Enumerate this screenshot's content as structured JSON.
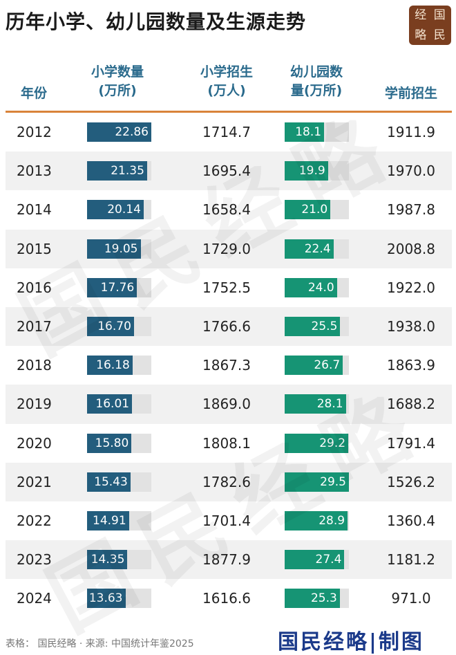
{
  "title": "历年小学、幼儿园数量及生源走势",
  "logo": {
    "chars": [
      "经",
      "国",
      "略",
      "民"
    ]
  },
  "watermark": "国民经略",
  "colors": {
    "primary_bar": "#235d7d",
    "kindergarten_bar": "#169474",
    "header_text": "#2a6a8c",
    "accent_line": "#d9833a",
    "logo_bg": "#7a3e1f"
  },
  "header": {
    "year": "年份",
    "schools_line1": "小学数量",
    "schools_line2": "(万所)",
    "enroll_line1": "小学招生",
    "enroll_line2": "(万人)",
    "kinder_line1": "幼儿园数",
    "kinder_line2": "量(万所)",
    "preschool": "学前招生"
  },
  "footer": {
    "source": "表格： 国民经略 · 来源: 中国统计年鉴2025",
    "brand": "国民经略|制图"
  },
  "chart_data": {
    "type": "table",
    "columns": [
      "年份",
      "小学数量(万所)",
      "小学招生(万人)",
      "幼儿园数量(万所)",
      "学前招生"
    ],
    "primary_school_bar_max": 22.86,
    "kindergarten_bar_max": 29.5,
    "rows": [
      {
        "year": "2012",
        "primary_schools": "22.86",
        "primary_enroll": "1714.7",
        "kindergartens": "18.1",
        "preschool_enroll": "1911.9"
      },
      {
        "year": "2013",
        "primary_schools": "21.35",
        "primary_enroll": "1695.4",
        "kindergartens": "19.9",
        "preschool_enroll": "1970.0"
      },
      {
        "year": "2014",
        "primary_schools": "20.14",
        "primary_enroll": "1658.4",
        "kindergartens": "21.0",
        "preschool_enroll": "1987.8"
      },
      {
        "year": "2015",
        "primary_schools": "19.05",
        "primary_enroll": "1729.0",
        "kindergartens": "22.4",
        "preschool_enroll": "2008.8"
      },
      {
        "year": "2016",
        "primary_schools": "17.76",
        "primary_enroll": "1752.5",
        "kindergartens": "24.0",
        "preschool_enroll": "1922.0"
      },
      {
        "year": "2017",
        "primary_schools": "16.70",
        "primary_enroll": "1766.6",
        "kindergartens": "25.5",
        "preschool_enroll": "1938.0"
      },
      {
        "year": "2018",
        "primary_schools": "16.18",
        "primary_enroll": "1867.3",
        "kindergartens": "26.7",
        "preschool_enroll": "1863.9"
      },
      {
        "year": "2019",
        "primary_schools": "16.01",
        "primary_enroll": "1869.0",
        "kindergartens": "28.1",
        "preschool_enroll": "1688.2"
      },
      {
        "year": "2020",
        "primary_schools": "15.80",
        "primary_enroll": "1808.1",
        "kindergartens": "29.2",
        "preschool_enroll": "1791.4"
      },
      {
        "year": "2021",
        "primary_schools": "15.43",
        "primary_enroll": "1782.6",
        "kindergartens": "29.5",
        "preschool_enroll": "1526.2"
      },
      {
        "year": "2022",
        "primary_schools": "14.91",
        "primary_enroll": "1701.4",
        "kindergartens": "28.9",
        "preschool_enroll": "1360.4"
      },
      {
        "year": "2023",
        "primary_schools": "14.35",
        "primary_enroll": "1877.9",
        "kindergartens": "27.4",
        "preschool_enroll": "1181.2"
      },
      {
        "year": "2024",
        "primary_schools": "13.63",
        "primary_enroll": "1616.6",
        "kindergartens": "25.3",
        "preschool_enroll": "971.0"
      }
    ]
  }
}
